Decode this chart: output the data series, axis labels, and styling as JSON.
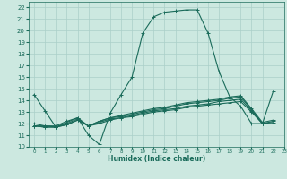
{
  "bg_color": "#cce8e0",
  "grid_color": "#aacfc8",
  "line_color": "#1a6b5a",
  "xlabel": "Humidex (Indice chaleur)",
  "xlim": [
    -0.5,
    23
  ],
  "ylim": [
    10,
    22.5
  ],
  "xticks": [
    0,
    1,
    2,
    3,
    4,
    5,
    6,
    7,
    8,
    9,
    10,
    11,
    12,
    13,
    14,
    15,
    16,
    17,
    18,
    19,
    20,
    21,
    22,
    23
  ],
  "yticks": [
    10,
    11,
    12,
    13,
    14,
    15,
    16,
    17,
    18,
    19,
    20,
    21,
    22
  ],
  "lines": [
    {
      "x": [
        0,
        1,
        2,
        3,
        4,
        5,
        6,
        7,
        8,
        9,
        10,
        11,
        12,
        13,
        14,
        15,
        16,
        17,
        18,
        19,
        20,
        21,
        22
      ],
      "y": [
        14.5,
        13.1,
        11.7,
        12.1,
        12.5,
        11.0,
        10.2,
        12.9,
        14.5,
        16.0,
        19.8,
        21.2,
        21.6,
        21.7,
        21.8,
        21.8,
        19.8,
        16.5,
        14.3,
        13.5,
        12.0,
        12.0,
        14.8
      ]
    },
    {
      "x": [
        0,
        1,
        2,
        3,
        4,
        5,
        6,
        7,
        8,
        9,
        10,
        11,
        12,
        13,
        14,
        15,
        16,
        17,
        18,
        19,
        20,
        21,
        22
      ],
      "y": [
        11.8,
        11.8,
        11.7,
        11.9,
        12.3,
        11.8,
        12.2,
        12.5,
        12.6,
        12.8,
        13.0,
        13.2,
        13.3,
        13.5,
        13.7,
        13.8,
        13.9,
        14.0,
        14.2,
        14.3,
        13.2,
        12.0,
        12.0
      ]
    },
    {
      "x": [
        0,
        1,
        2,
        3,
        4,
        5,
        6,
        7,
        8,
        9,
        10,
        11,
        12,
        13,
        14,
        15,
        16,
        17,
        18,
        19,
        20,
        21,
        22
      ],
      "y": [
        11.8,
        11.7,
        11.7,
        11.9,
        12.3,
        11.8,
        12.0,
        12.3,
        12.5,
        12.6,
        12.8,
        13.0,
        13.1,
        13.2,
        13.4,
        13.5,
        13.6,
        13.7,
        13.8,
        13.9,
        13.0,
        12.0,
        12.2
      ]
    },
    {
      "x": [
        0,
        1,
        2,
        3,
        4,
        5,
        6,
        7,
        8,
        9,
        10,
        11,
        12,
        13,
        14,
        15,
        16,
        17,
        18,
        19,
        20,
        21,
        22
      ],
      "y": [
        11.8,
        11.7,
        11.7,
        12.0,
        12.4,
        11.8,
        12.1,
        12.4,
        12.5,
        12.7,
        12.9,
        13.1,
        13.2,
        13.3,
        13.5,
        13.6,
        13.7,
        13.9,
        14.0,
        14.1,
        13.1,
        12.0,
        12.1
      ]
    },
    {
      "x": [
        0,
        1,
        2,
        3,
        4,
        5,
        6,
        7,
        8,
        9,
        10,
        11,
        12,
        13,
        14,
        15,
        16,
        17,
        18,
        19,
        20,
        21,
        22
      ],
      "y": [
        12.0,
        11.8,
        11.8,
        12.2,
        12.5,
        11.8,
        12.2,
        12.5,
        12.7,
        12.9,
        13.1,
        13.3,
        13.4,
        13.6,
        13.8,
        13.9,
        14.0,
        14.1,
        14.3,
        14.4,
        13.3,
        12.1,
        12.3
      ]
    }
  ]
}
